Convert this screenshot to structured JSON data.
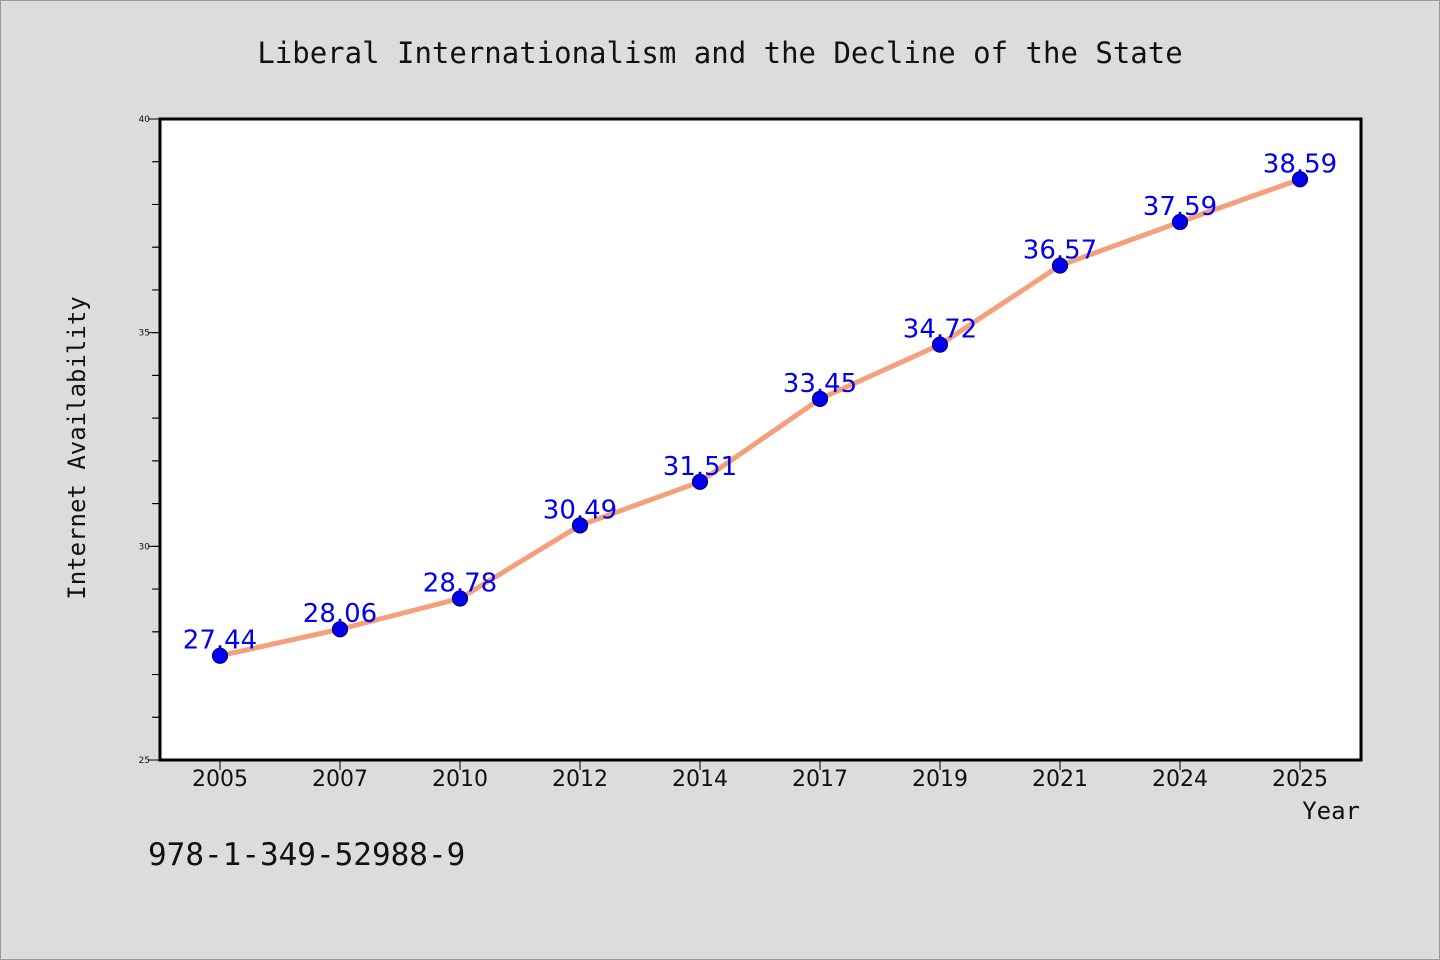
{
  "chart_data": {
    "type": "line",
    "title": "Liberal Internationalism and the Decline of the State",
    "xlabel": "Year",
    "ylabel": "Internet Availability",
    "categories": [
      "2005",
      "2007",
      "2010",
      "2012",
      "2014",
      "2017",
      "2019",
      "2021",
      "2024",
      "2025"
    ],
    "series": [
      {
        "values": [
          27.44,
          28.06,
          28.78,
          30.49,
          31.51,
          33.45,
          34.72,
          36.57,
          37.59,
          38.59
        ],
        "labels": [
          "27.44",
          "28.06",
          "28.78",
          "30.49",
          "31.51",
          "33.45",
          "34.72",
          "36.57",
          "37.59",
          "38.59"
        ]
      }
    ],
    "ylim": [
      25,
      40
    ],
    "y_ticks": [
      "25",
      "30",
      "35",
      "40"
    ],
    "y_minor_step": 1,
    "grid": false,
    "legend": "none",
    "colors": {
      "line": "#f4a07c",
      "marker": "#0000ee",
      "marker_edge": "#000080",
      "data_label": "#0000ee",
      "background": "#dcdcdc",
      "plot_background": "#ffffff"
    }
  },
  "annotation": {
    "isbn": "978-1-349-52988-9"
  }
}
